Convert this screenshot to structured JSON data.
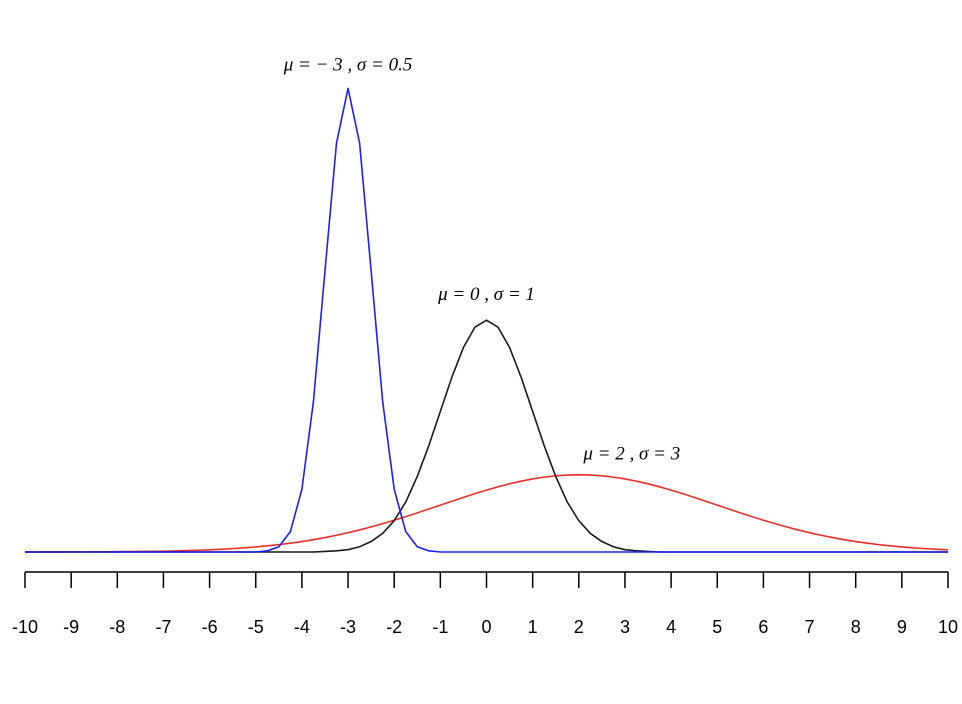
{
  "chart_data": {
    "type": "line",
    "x": [
      -10,
      -9.75,
      -9.5,
      -9.25,
      -9,
      -8.75,
      -8.5,
      -8.25,
      -8,
      -7.75,
      -7.5,
      -7.25,
      -7,
      -6.75,
      -6.5,
      -6.25,
      -6,
      -5.75,
      -5.5,
      -5.25,
      -5,
      -4.75,
      -4.5,
      -4.25,
      -4,
      -3.75,
      -3.5,
      -3.25,
      -3,
      -2.75,
      -2.5,
      -2.25,
      -2,
      -1.75,
      -1.5,
      -1.25,
      -1,
      -0.75,
      -0.5,
      -0.25,
      0,
      0.25,
      0.5,
      0.75,
      1,
      1.25,
      1.5,
      1.75,
      2,
      2.25,
      2.5,
      2.75,
      3,
      3.25,
      3.5,
      3.75,
      4,
      4.25,
      4.5,
      4.75,
      5,
      5.25,
      5.5,
      5.75,
      6,
      6.25,
      6.5,
      6.75,
      7,
      7.25,
      7.5,
      7.75,
      8,
      8.25,
      8.5,
      8.75,
      9,
      9.25,
      9.5,
      9.75,
      10
    ],
    "series": [
      {
        "name": "μ = 2 , σ = 3",
        "color": "#e8302a",
        "values": [
          0.0,
          0.0001,
          0.0001,
          0.0001,
          0.0002,
          0.0002,
          0.0003,
          0.0004,
          0.0005,
          0.0007,
          0.0009,
          0.0011,
          0.0015,
          0.0019,
          0.0024,
          0.003,
          0.0038,
          0.0047,
          0.0058,
          0.0072,
          0.0087,
          0.0106,
          0.0127,
          0.0152,
          0.018,
          0.0212,
          0.0248,
          0.0288,
          0.0332,
          0.038,
          0.0432,
          0.0488,
          0.0547,
          0.0609,
          0.0673,
          0.074,
          0.0807,
          0.0874,
          0.094,
          0.1004,
          0.1065,
          0.1122,
          0.1174,
          0.1219,
          0.1258,
          0.1289,
          0.1311,
          0.1325,
          0.133,
          0.1325,
          0.1311,
          0.1289,
          0.1258,
          0.1219,
          0.1174,
          0.1122,
          0.1065,
          0.1004,
          0.094,
          0.0874,
          0.0807,
          0.074,
          0.0673,
          0.0609,
          0.0547,
          0.0488,
          0.0432,
          0.038,
          0.0332,
          0.0288,
          0.0248,
          0.0212,
          0.018,
          0.0152,
          0.0127,
          0.0106,
          0.0087,
          0.0072,
          0.0058,
          0.0047,
          0.0038
        ]
      },
      {
        "name": "μ = 0 , σ = 1",
        "color": "#1a1a1a",
        "values": [
          0,
          0,
          0,
          0,
          0,
          0,
          0,
          0,
          0,
          0,
          0,
          0,
          0,
          0,
          0,
          0,
          0,
          0,
          0,
          0,
          0,
          0,
          0,
          0,
          0,
          0,
          0.001,
          0.002,
          0.004,
          0.009,
          0.018,
          0.032,
          0.054,
          0.086,
          0.13,
          0.183,
          0.242,
          0.301,
          0.352,
          0.387,
          0.399,
          0.387,
          0.352,
          0.301,
          0.242,
          0.183,
          0.13,
          0.086,
          0.054,
          0.032,
          0.018,
          0.009,
          0.004,
          0.002,
          0.001,
          0,
          0,
          0,
          0,
          0,
          0,
          0,
          0,
          0,
          0,
          0,
          0,
          0,
          0,
          0,
          0,
          0,
          0,
          0,
          0,
          0,
          0,
          0,
          0,
          0,
          0
        ]
      },
      {
        "name": "μ = − 3 , σ = 0.5",
        "color": "#1f1ff0",
        "values": [
          0,
          0,
          0,
          0,
          0,
          0,
          0,
          0,
          0,
          0,
          0,
          0,
          0,
          0,
          0,
          0,
          0,
          0,
          0,
          0,
          0,
          0.002,
          0.009,
          0.035,
          0.108,
          0.259,
          0.484,
          0.704,
          0.798,
          0.704,
          0.484,
          0.259,
          0.108,
          0.035,
          0.009,
          0.002,
          0,
          0,
          0,
          0,
          0,
          0,
          0,
          0,
          0,
          0,
          0,
          0,
          0,
          0,
          0,
          0,
          0,
          0,
          0,
          0,
          0,
          0,
          0,
          0,
          0,
          0,
          0,
          0,
          0,
          0,
          0,
          0,
          0,
          0,
          0,
          0,
          0,
          0,
          0,
          0,
          0,
          0,
          0,
          0,
          0
        ]
      }
    ],
    "xlim": [
      -10,
      10
    ],
    "xticks": [
      -10,
      -9,
      -8,
      -7,
      -6,
      -5,
      -4,
      -3,
      -2,
      -1,
      0,
      1,
      2,
      3,
      4,
      5,
      6,
      7,
      8,
      9,
      10
    ],
    "ylim": [
      0,
      0.8
    ]
  }
}
